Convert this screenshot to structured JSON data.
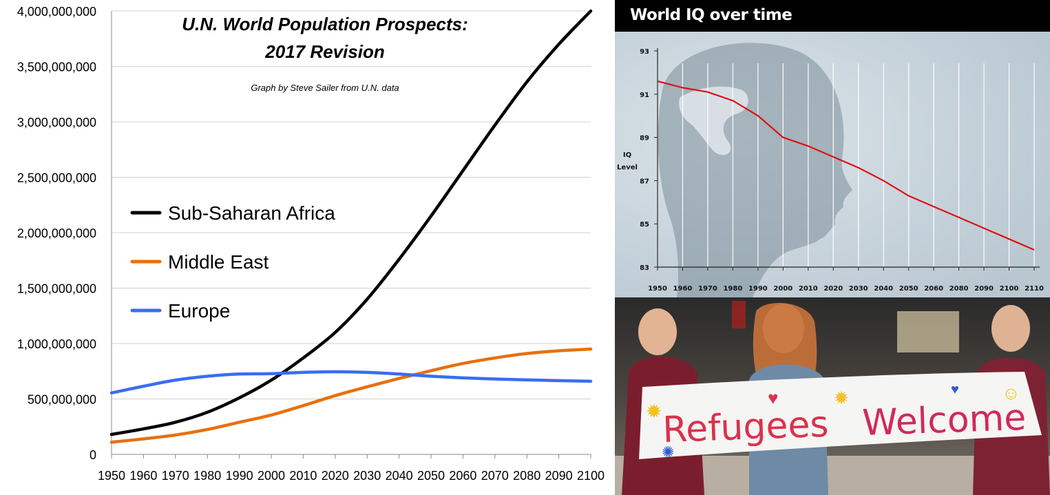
{
  "population_chart": {
    "title_line1": "U.N. World Population Prospects:",
    "title_line2": "2017 Revision",
    "subtitle": "Graph by Steve Sailer from U.N. data",
    "legend": [
      {
        "label": "Sub-Saharan Africa"
      },
      {
        "label": "Middle East"
      },
      {
        "label": "Europe"
      }
    ],
    "y_ticks": [
      "0",
      "500,000,000",
      "1,000,000,000",
      "1,500,000,000",
      "2,000,000,000",
      "2,500,000,000",
      "3,000,000,000",
      "3,500,000,000",
      "4,000,000,000"
    ],
    "x_ticks": [
      "1950",
      "1960",
      "1970",
      "1980",
      "1990",
      "2000",
      "2010",
      "2020",
      "2030",
      "2040",
      "2050",
      "2060",
      "2070",
      "2080",
      "2090",
      "2100"
    ]
  },
  "iq_chart": {
    "title": "World IQ over time",
    "ylabel_line1": "IQ",
    "ylabel_line2": "Level",
    "y_ticks": [
      "93",
      "91",
      "89",
      "87",
      "85",
      "83"
    ],
    "x_ticks": [
      "1950",
      "1960",
      "1970",
      "1980",
      "1990",
      "2000",
      "2010",
      "2020",
      "2030",
      "2040",
      "2050",
      "2060",
      "2080",
      "2090",
      "2100",
      "2110"
    ]
  },
  "photo": {
    "banner_text_part1": "Refugees",
    "banner_text_part2": "Welcome"
  },
  "colors": {
    "africa": "#000000",
    "middle_east": "#e8700e",
    "europe": "#3a6df0",
    "iq_line": "#dd1111",
    "iq_background": "#c8d4dc"
  },
  "chart_data": [
    {
      "type": "line",
      "title": "U.N. World Population Prospects: 2017 Revision",
      "subtitle": "Graph by Steve Sailer from U.N. data",
      "xlim": [
        1950,
        2100
      ],
      "ylim": [
        0,
        4000000000
      ],
      "grid": true,
      "legend_position": "left",
      "x": [
        1950,
        1960,
        1970,
        1980,
        1990,
        2000,
        2010,
        2020,
        2030,
        2040,
        2050,
        2060,
        2070,
        2080,
        2090,
        2100
      ],
      "series": [
        {
          "name": "Sub-Saharan Africa",
          "values": [
            180000000,
            230000000,
            290000000,
            380000000,
            510000000,
            670000000,
            870000000,
            1100000000,
            1400000000,
            1760000000,
            2150000000,
            2560000000,
            2970000000,
            3360000000,
            3700000000,
            4000000000
          ]
        },
        {
          "name": "Middle East",
          "values": [
            110000000,
            140000000,
            175000000,
            225000000,
            290000000,
            355000000,
            440000000,
            530000000,
            610000000,
            685000000,
            755000000,
            820000000,
            870000000,
            910000000,
            935000000,
            950000000
          ]
        },
        {
          "name": "Europe",
          "values": [
            555000000,
            615000000,
            670000000,
            705000000,
            725000000,
            728000000,
            740000000,
            745000000,
            740000000,
            725000000,
            705000000,
            690000000,
            680000000,
            672000000,
            665000000,
            660000000
          ]
        }
      ]
    },
    {
      "type": "line",
      "title": "World IQ over time",
      "ylabel": "IQ Level",
      "ylim": [
        83,
        93
      ],
      "grid": true,
      "x": [
        "1950",
        "1960",
        "1970",
        "1980",
        "1990",
        "2000",
        "2010",
        "2020",
        "2030",
        "2040",
        "2050",
        "2060",
        "2080",
        "2090",
        "2100",
        "2110"
      ],
      "series": [
        {
          "values": [
            91.6,
            91.3,
            91.1,
            90.7,
            90.0,
            89.0,
            88.6,
            88.1,
            87.6,
            87.0,
            86.3,
            85.8,
            85.3,
            84.8,
            84.3,
            83.8
          ]
        }
      ]
    }
  ]
}
